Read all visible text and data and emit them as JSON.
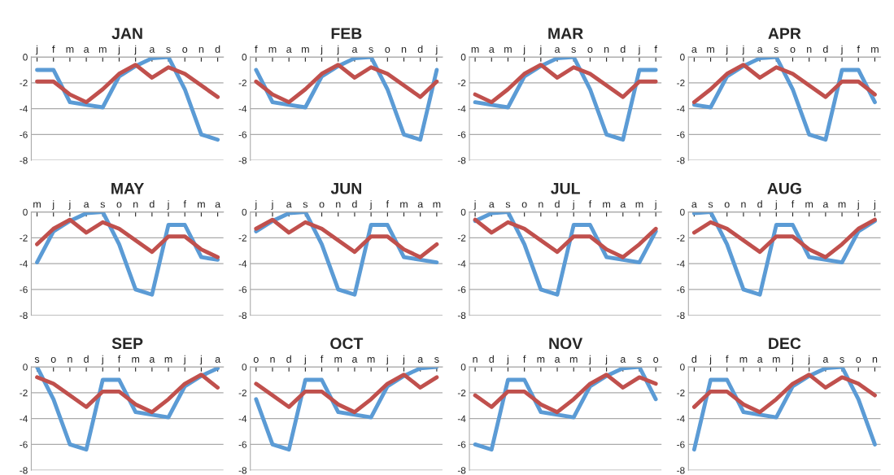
{
  "chart_data": [
    {
      "type": "line",
      "title": "JAN",
      "categories": [
        "j",
        "f",
        "m",
        "a",
        "m",
        "j",
        "j",
        "a",
        "s",
        "o",
        "n",
        "d"
      ],
      "series": [
        {
          "color": "#5b9bd5",
          "values": [
            -1.0,
            -1.0,
            -3.5,
            -3.7,
            -3.9,
            -1.5,
            -0.7,
            -0.1,
            0,
            -2.5,
            -6.0,
            -6.4
          ]
        },
        {
          "color": "#c0504d",
          "values": [
            -1.9,
            -1.9,
            -2.9,
            -3.5,
            -2.5,
            -1.3,
            -0.6,
            -1.6,
            -0.8,
            -1.3,
            -2.2,
            -3.1
          ]
        }
      ],
      "ylim": [
        -8,
        0
      ],
      "yticks": [
        -8,
        -6,
        -4,
        -2,
        0
      ],
      "grid": "y"
    },
    {
      "type": "line",
      "title": "FEB",
      "categories": [
        "f",
        "m",
        "a",
        "m",
        "j",
        "j",
        "a",
        "s",
        "o",
        "n",
        "d",
        "j"
      ],
      "series": [
        {
          "color": "#5b9bd5",
          "values": [
            -1.0,
            -3.5,
            -3.7,
            -3.9,
            -1.5,
            -0.7,
            -0.1,
            0,
            -2.5,
            -6.0,
            -6.4,
            -1.0
          ]
        },
        {
          "color": "#c0504d",
          "values": [
            -1.9,
            -2.9,
            -3.5,
            -2.5,
            -1.3,
            -0.6,
            -1.6,
            -0.8,
            -1.3,
            -2.2,
            -3.1,
            -1.9
          ]
        }
      ],
      "ylim": [
        -8,
        0
      ],
      "yticks": [
        -8,
        -6,
        -4,
        -2,
        0
      ],
      "grid": "y"
    },
    {
      "type": "line",
      "title": "MAR",
      "categories": [
        "m",
        "a",
        "m",
        "j",
        "j",
        "a",
        "s",
        "o",
        "n",
        "d",
        "j",
        "f"
      ],
      "series": [
        {
          "color": "#5b9bd5",
          "values": [
            -3.5,
            -3.7,
            -3.9,
            -1.5,
            -0.7,
            -0.1,
            0,
            -2.5,
            -6.0,
            -6.4,
            -1.0,
            -1.0
          ]
        },
        {
          "color": "#c0504d",
          "values": [
            -2.9,
            -3.5,
            -2.5,
            -1.3,
            -0.6,
            -1.6,
            -0.8,
            -1.3,
            -2.2,
            -3.1,
            -1.9,
            -1.9
          ]
        }
      ],
      "ylim": [
        -8,
        0
      ],
      "yticks": [
        -8,
        -6,
        -4,
        -2,
        0
      ],
      "grid": "y"
    },
    {
      "type": "line",
      "title": "APR",
      "categories": [
        "a",
        "m",
        "j",
        "j",
        "a",
        "s",
        "o",
        "n",
        "d",
        "j",
        "f",
        "m"
      ],
      "series": [
        {
          "color": "#5b9bd5",
          "values": [
            -3.7,
            -3.9,
            -1.5,
            -0.7,
            -0.1,
            0,
            -2.5,
            -6.0,
            -6.4,
            -1.0,
            -1.0,
            -3.5
          ]
        },
        {
          "color": "#c0504d",
          "values": [
            -3.5,
            -2.5,
            -1.3,
            -0.6,
            -1.6,
            -0.8,
            -1.3,
            -2.2,
            -3.1,
            -1.9,
            -1.9,
            -2.9
          ]
        }
      ],
      "ylim": [
        -8,
        0
      ],
      "yticks": [
        -8,
        -6,
        -4,
        -2,
        0
      ],
      "grid": "y"
    },
    {
      "type": "line",
      "title": "MAY",
      "categories": [
        "m",
        "j",
        "j",
        "a",
        "s",
        "o",
        "n",
        "d",
        "j",
        "f",
        "m",
        "a"
      ],
      "series": [
        {
          "color": "#5b9bd5",
          "values": [
            -3.9,
            -1.5,
            -0.7,
            -0.1,
            0,
            -2.5,
            -6.0,
            -6.4,
            -1.0,
            -1.0,
            -3.5,
            -3.7
          ]
        },
        {
          "color": "#c0504d",
          "values": [
            -2.5,
            -1.3,
            -0.6,
            -1.6,
            -0.8,
            -1.3,
            -2.2,
            -3.1,
            -1.9,
            -1.9,
            -2.9,
            -3.5
          ]
        }
      ],
      "ylim": [
        -8,
        0
      ],
      "yticks": [
        -8,
        -6,
        -4,
        -2,
        0
      ],
      "grid": "y"
    },
    {
      "type": "line",
      "title": "JUN",
      "categories": [
        "j",
        "j",
        "a",
        "s",
        "o",
        "n",
        "d",
        "j",
        "f",
        "m",
        "a",
        "m"
      ],
      "series": [
        {
          "color": "#5b9bd5",
          "values": [
            -1.5,
            -0.7,
            -0.1,
            0,
            -2.5,
            -6.0,
            -6.4,
            -1.0,
            -1.0,
            -3.5,
            -3.7,
            -3.9
          ]
        },
        {
          "color": "#c0504d",
          "values": [
            -1.3,
            -0.6,
            -1.6,
            -0.8,
            -1.3,
            -2.2,
            -3.1,
            -1.9,
            -1.9,
            -2.9,
            -3.5,
            -2.5
          ]
        }
      ],
      "ylim": [
        -8,
        0
      ],
      "yticks": [
        -8,
        -6,
        -4,
        -2,
        0
      ],
      "grid": "y"
    },
    {
      "type": "line",
      "title": "JUL",
      "categories": [
        "j",
        "a",
        "s",
        "o",
        "n",
        "d",
        "j",
        "f",
        "m",
        "a",
        "m",
        "j"
      ],
      "series": [
        {
          "color": "#5b9bd5",
          "values": [
            -0.7,
            -0.1,
            0,
            -2.5,
            -6.0,
            -6.4,
            -1.0,
            -1.0,
            -3.5,
            -3.7,
            -3.9,
            -1.5
          ]
        },
        {
          "color": "#c0504d",
          "values": [
            -0.6,
            -1.6,
            -0.8,
            -1.3,
            -2.2,
            -3.1,
            -1.9,
            -1.9,
            -2.9,
            -3.5,
            -2.5,
            -1.3
          ]
        }
      ],
      "ylim": [
        -8,
        0
      ],
      "yticks": [
        -8,
        -6,
        -4,
        -2,
        0
      ],
      "grid": "y"
    },
    {
      "type": "line",
      "title": "AUG",
      "categories": [
        "a",
        "s",
        "o",
        "n",
        "d",
        "j",
        "f",
        "m",
        "a",
        "m",
        "j",
        "j"
      ],
      "series": [
        {
          "color": "#5b9bd5",
          "values": [
            -0.1,
            0,
            -2.5,
            -6.0,
            -6.4,
            -1.0,
            -1.0,
            -3.5,
            -3.7,
            -3.9,
            -1.5,
            -0.7
          ]
        },
        {
          "color": "#c0504d",
          "values": [
            -1.6,
            -0.8,
            -1.3,
            -2.2,
            -3.1,
            -1.9,
            -1.9,
            -2.9,
            -3.5,
            -2.5,
            -1.3,
            -0.6
          ]
        }
      ],
      "ylim": [
        -8,
        0
      ],
      "yticks": [
        -8,
        -6,
        -4,
        -2,
        0
      ],
      "grid": "y"
    },
    {
      "type": "line",
      "title": "SEP",
      "categories": [
        "s",
        "o",
        "n",
        "d",
        "j",
        "f",
        "m",
        "a",
        "m",
        "j",
        "j",
        "a"
      ],
      "series": [
        {
          "color": "#5b9bd5",
          "values": [
            0,
            -2.5,
            -6.0,
            -6.4,
            -1.0,
            -1.0,
            -3.5,
            -3.7,
            -3.9,
            -1.5,
            -0.7,
            -0.1
          ]
        },
        {
          "color": "#c0504d",
          "values": [
            -0.8,
            -1.3,
            -2.2,
            -3.1,
            -1.9,
            -1.9,
            -2.9,
            -3.5,
            -2.5,
            -1.3,
            -0.6,
            -1.6
          ]
        }
      ],
      "ylim": [
        -8,
        0
      ],
      "yticks": [
        -8,
        -6,
        -4,
        -2,
        0
      ],
      "grid": "y"
    },
    {
      "type": "line",
      "title": "OCT",
      "categories": [
        "o",
        "n",
        "d",
        "j",
        "f",
        "m",
        "a",
        "m",
        "j",
        "j",
        "a",
        "s"
      ],
      "series": [
        {
          "color": "#5b9bd5",
          "values": [
            -2.5,
            -6.0,
            -6.4,
            -1.0,
            -1.0,
            -3.5,
            -3.7,
            -3.9,
            -1.5,
            -0.7,
            -0.1,
            0
          ]
        },
        {
          "color": "#c0504d",
          "values": [
            -1.3,
            -2.2,
            -3.1,
            -1.9,
            -1.9,
            -2.9,
            -3.5,
            -2.5,
            -1.3,
            -0.6,
            -1.6,
            -0.8
          ]
        }
      ],
      "ylim": [
        -8,
        0
      ],
      "yticks": [
        -8,
        -6,
        -4,
        -2,
        0
      ],
      "grid": "y"
    },
    {
      "type": "line",
      "title": "NOV",
      "categories": [
        "n",
        "d",
        "j",
        "f",
        "m",
        "a",
        "m",
        "j",
        "j",
        "a",
        "s",
        "o"
      ],
      "series": [
        {
          "color": "#5b9bd5",
          "values": [
            -6.0,
            -6.4,
            -1.0,
            -1.0,
            -3.5,
            -3.7,
            -3.9,
            -1.5,
            -0.7,
            -0.1,
            0,
            -2.5
          ]
        },
        {
          "color": "#c0504d",
          "values": [
            -2.2,
            -3.1,
            -1.9,
            -1.9,
            -2.9,
            -3.5,
            -2.5,
            -1.3,
            -0.6,
            -1.6,
            -0.8,
            -1.3
          ]
        }
      ],
      "ylim": [
        -8,
        0
      ],
      "yticks": [
        -8,
        -6,
        -4,
        -2,
        0
      ],
      "grid": "y"
    },
    {
      "type": "line",
      "title": "DEC",
      "categories": [
        "d",
        "j",
        "f",
        "m",
        "a",
        "m",
        "j",
        "j",
        "a",
        "s",
        "o",
        "n"
      ],
      "series": [
        {
          "color": "#5b9bd5",
          "values": [
            -6.4,
            -1.0,
            -1.0,
            -3.5,
            -3.7,
            -3.9,
            -1.5,
            -0.7,
            -0.1,
            0,
            -2.5,
            -6.0
          ]
        },
        {
          "color": "#c0504d",
          "values": [
            -3.1,
            -1.9,
            -1.9,
            -2.9,
            -3.5,
            -2.5,
            -1.3,
            -0.6,
            -1.6,
            -0.8,
            -1.3,
            -2.2
          ]
        }
      ],
      "ylim": [
        -8,
        0
      ],
      "yticks": [
        -8,
        -6,
        -4,
        -2,
        0
      ],
      "grid": "y"
    }
  ]
}
